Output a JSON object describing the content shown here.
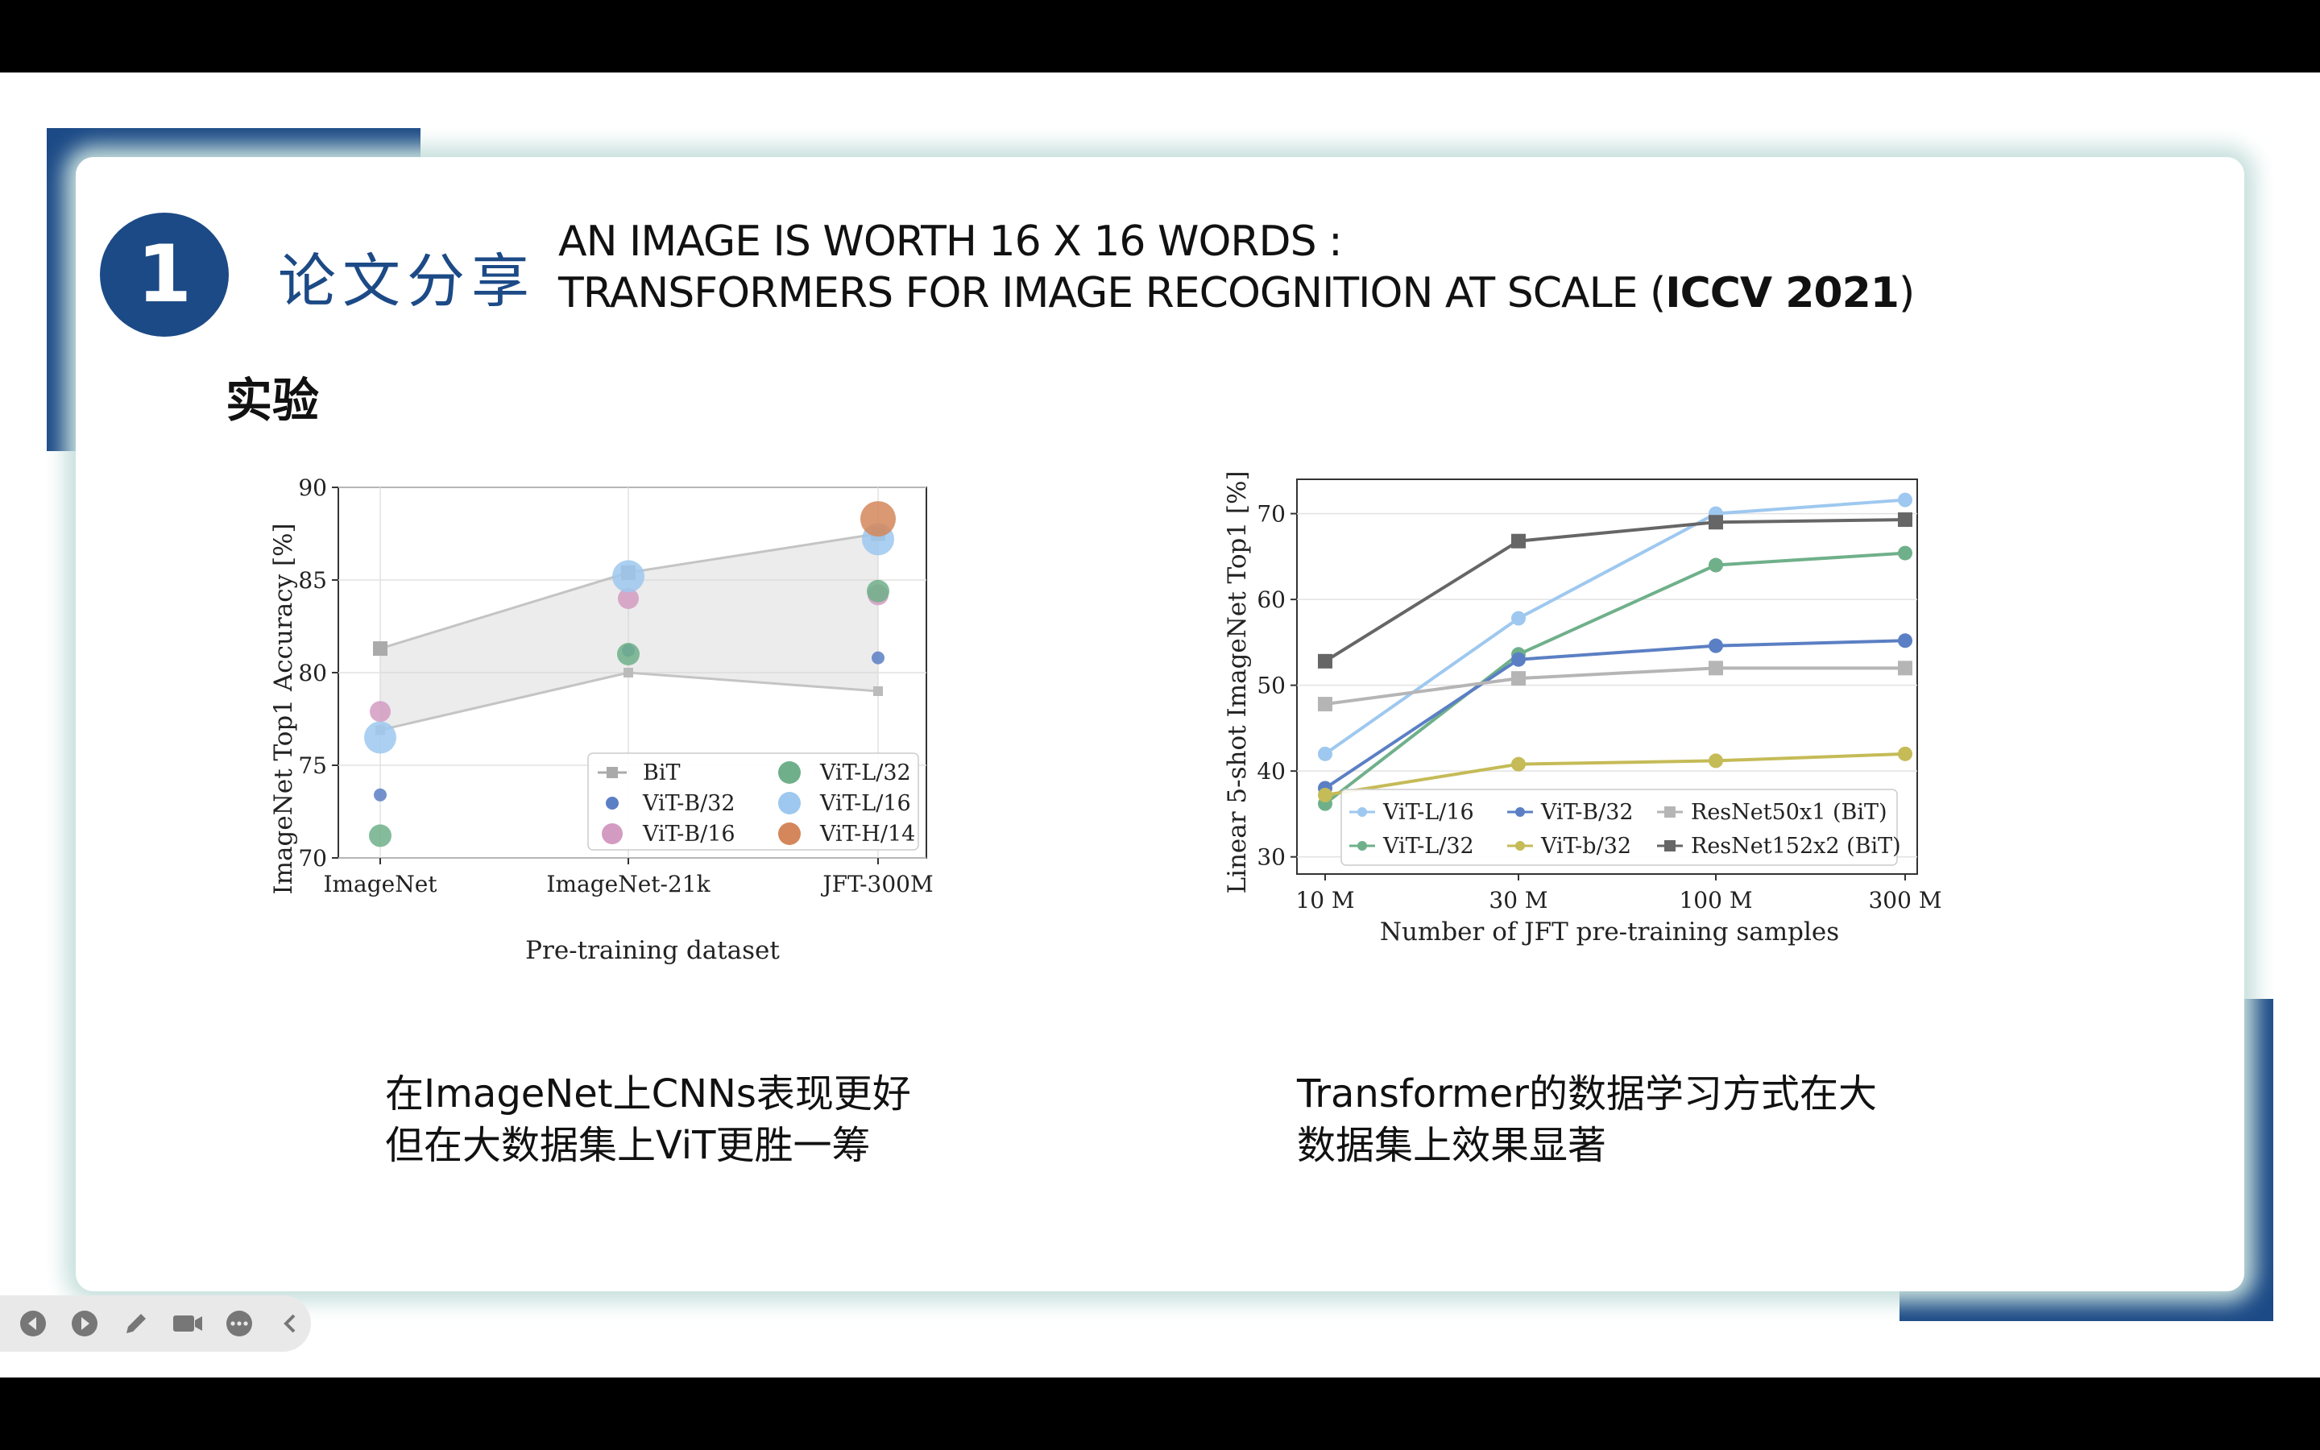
{
  "slide": {
    "number": "1",
    "section_title": "论文分享",
    "paper_title_line1": "AN IMAGE IS WORTH 16 X 16 WORDS :",
    "paper_title_line2_prefix": "TRANSFORMERS FOR IMAGE RECOGNITION AT SCALE  (",
    "paper_venue": "ICCV 2021",
    "paper_title_line2_suffix": ")",
    "subheading": "实验",
    "caption_left_line1": "在ImageNet上CNNs表现更好",
    "caption_left_line2": "但在大数据集上ViT更胜一筹",
    "caption_right_line1": "Transformer的数据学习方式在大",
    "caption_right_line2": "数据集上效果显著"
  },
  "colors": {
    "accent_blue": "#1c4a86",
    "card_glow": "#c7e0dd"
  },
  "toolbar": {
    "icons": [
      "prev-icon",
      "next-icon",
      "pen-icon",
      "camera-icon",
      "more-icon",
      "collapse-icon"
    ]
  },
  "chart_data": [
    {
      "type": "scatter",
      "xlabel": "Pre-training dataset",
      "ylabel": "ImageNet Top1 Accuracy [%]",
      "categories": [
        "ImageNet",
        "ImageNet-21k",
        "JFT-300M"
      ],
      "ylim": [
        70,
        90
      ],
      "yticks": [
        "70",
        "75",
        "80",
        "85",
        "90"
      ],
      "grid": true,
      "legend_position": "bottom-right",
      "bit_band_upper": [
        81.3,
        85.4,
        87.5
      ],
      "bit_band_lower": [
        76.9,
        80.0,
        79.0
      ],
      "series": [
        {
          "name": "BiT",
          "color": "#aaaaaa",
          "values": [
            81.3,
            85.4,
            87.5
          ]
        },
        {
          "name": "ViT-B/32",
          "color": "#5b7fc4",
          "values": [
            73.4,
            81.2,
            80.8
          ]
        },
        {
          "name": "ViT-B/16",
          "color": "#d49bc2",
          "values": [
            77.9,
            84.0,
            84.2
          ]
        },
        {
          "name": "ViT-L/32",
          "color": "#6fb08a",
          "values": [
            71.2,
            81.0,
            84.4
          ]
        },
        {
          "name": "ViT-L/16",
          "color": "#9ec8ef",
          "values": [
            76.5,
            85.2,
            87.2
          ]
        },
        {
          "name": "ViT-H/14",
          "color": "#d4875a",
          "values": [
            null,
            null,
            88.3
          ]
        }
      ]
    },
    {
      "type": "line",
      "xlabel": "Number of JFT pre-training samples",
      "ylabel": "Linear 5-shot ImageNet Top1 [%]",
      "categories": [
        "10 M",
        "30 M",
        "100 M",
        "300 M"
      ],
      "ylim": [
        28,
        74
      ],
      "yticks": [
        "30",
        "40",
        "50",
        "60",
        "70"
      ],
      "grid": true,
      "legend_position": "bottom-right",
      "series": [
        {
          "name": "ViT-L/16",
          "color": "#9ec8ef",
          "values": [
            42.0,
            57.8,
            70.0,
            71.6
          ]
        },
        {
          "name": "ViT-L/32",
          "color": "#6fb08a",
          "values": [
            36.2,
            53.6,
            64.0,
            65.4
          ]
        },
        {
          "name": "ViT-B/32",
          "color": "#5b7fc4",
          "values": [
            38.0,
            53.0,
            54.6,
            55.2
          ]
        },
        {
          "name": "ViT-b/32",
          "color": "#c5bb57",
          "values": [
            37.2,
            40.8,
            41.2,
            42.0
          ]
        },
        {
          "name": "ResNet50x1 (BiT)",
          "color": "#b5b5b5",
          "values": [
            47.8,
            50.8,
            52.0,
            52.0
          ]
        },
        {
          "name": "ResNet152x2 (BiT)",
          "color": "#666666",
          "values": [
            52.8,
            66.8,
            69.0,
            69.3
          ]
        }
      ]
    }
  ]
}
